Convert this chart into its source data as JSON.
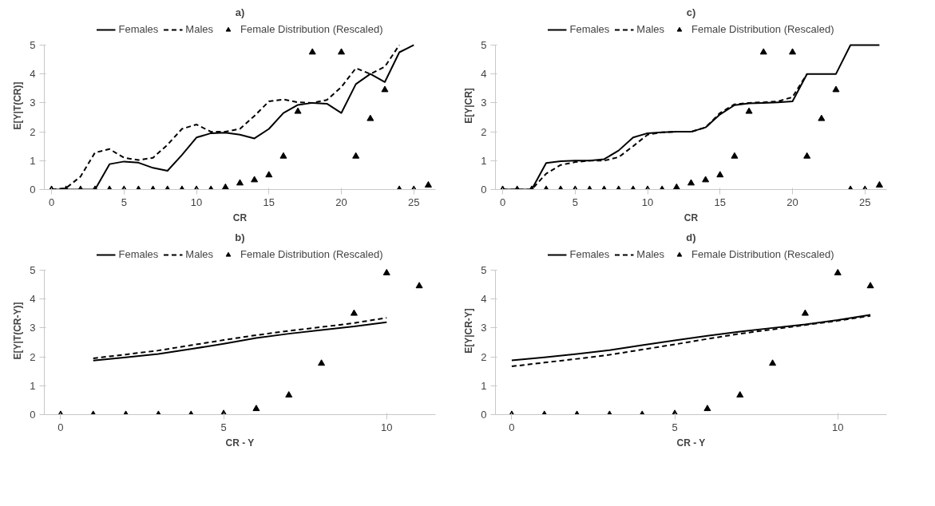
{
  "chart_data": [
    {
      "type": "line",
      "title": "a)",
      "xlabel": "CR",
      "ylabel": "E[Y|T(CR)]",
      "xlim": [
        -0.5,
        26.5
      ],
      "xticks": [
        0,
        5,
        10,
        15,
        20,
        25
      ],
      "ylim": [
        0,
        5
      ],
      "yticks": [
        0,
        1,
        2,
        3,
        4,
        5
      ],
      "legend": "top",
      "series": [
        {
          "name": "Females",
          "color": "#000000",
          "line_style": "solid",
          "x": [
            0,
            1,
            2,
            3,
            4,
            5,
            6,
            7,
            8,
            9,
            10,
            11,
            12,
            13,
            14,
            15,
            16,
            17,
            18,
            19,
            20,
            21,
            22,
            23,
            24,
            25
          ],
          "values": [
            0,
            0,
            0,
            0,
            0.88,
            0.97,
            0.93,
            0.75,
            0.65,
            1.2,
            1.8,
            1.95,
            1.97,
            1.9,
            1.77,
            2.1,
            2.65,
            2.93,
            3.0,
            2.97,
            2.65,
            3.65,
            4.0,
            3.72,
            4.75,
            5.0
          ]
        },
        {
          "name": "Males",
          "color": "#000000",
          "line_style": "dashed",
          "x": [
            0,
            1,
            2,
            3,
            4,
            5,
            6,
            7,
            8,
            9,
            10,
            11,
            12,
            13,
            14,
            15,
            16,
            17,
            18,
            19,
            20,
            21,
            22,
            23,
            24
          ],
          "values": [
            0,
            0.05,
            0.45,
            1.28,
            1.4,
            1.1,
            1.02,
            1.1,
            1.55,
            2.1,
            2.25,
            2.0,
            2.0,
            2.1,
            2.55,
            3.05,
            3.12,
            3.02,
            3.0,
            3.1,
            3.55,
            4.2,
            4.0,
            4.25,
            5.0
          ]
        },
        {
          "name": "Female Distribution (Rescaled)",
          "type": "scatter",
          "marker": "triangle",
          "color": "#000000",
          "x": [
            0,
            1,
            2,
            3,
            4,
            5,
            6,
            7,
            8,
            9,
            10,
            11,
            12,
            13,
            14,
            15,
            16,
            17,
            18,
            19,
            20,
            21,
            22,
            23,
            24,
            25,
            26
          ],
          "values": [
            0,
            0,
            0,
            0,
            0,
            0,
            0,
            0,
            0,
            0,
            0,
            0,
            0.07,
            0.22,
            0.33,
            0.5,
            1.15,
            2.7,
            4.75,
            null,
            4.75,
            1.15,
            2.45,
            3.45,
            0,
            0,
            0.15
          ]
        }
      ]
    },
    {
      "type": "line",
      "title": "c)",
      "xlabel": "CR",
      "ylabel": "E[Y|CR]",
      "xlim": [
        -0.5,
        26.5
      ],
      "xticks": [
        0,
        5,
        10,
        15,
        20,
        25
      ],
      "ylim": [
        0,
        5
      ],
      "yticks": [
        0,
        1,
        2,
        3,
        4,
        5
      ],
      "legend": "top",
      "series": [
        {
          "name": "Females",
          "color": "#000000",
          "line_style": "solid",
          "x": [
            0,
            1,
            2,
            3,
            4,
            5,
            6,
            7,
            8,
            9,
            10,
            11,
            12,
            13,
            14,
            15,
            16,
            17,
            18,
            19,
            20,
            21,
            22,
            23,
            24,
            25,
            26
          ],
          "values": [
            0,
            0,
            0,
            0.92,
            0.98,
            1.0,
            1.0,
            1.05,
            1.35,
            1.8,
            1.95,
            1.98,
            2.0,
            2.0,
            2.15,
            2.6,
            2.92,
            2.98,
            3.0,
            3.02,
            3.05,
            4.0,
            4.0,
            4.0,
            5.0,
            5.0,
            5.0
          ]
        },
        {
          "name": "Males",
          "color": "#000000",
          "line_style": "dashed",
          "x": [
            0,
            1,
            2,
            3,
            4,
            5,
            6,
            7,
            8,
            9,
            10,
            11,
            12,
            13,
            14,
            15,
            16,
            17,
            18,
            19,
            20,
            21
          ],
          "values": [
            0,
            0,
            0,
            0.55,
            0.85,
            0.95,
            1.0,
            1.0,
            1.12,
            1.5,
            1.9,
            1.98,
            2.0,
            2.0,
            2.15,
            2.65,
            2.95,
            3.0,
            3.02,
            3.05,
            3.2,
            4.0
          ]
        },
        {
          "name": "Female Distribution (Rescaled)",
          "type": "scatter",
          "marker": "triangle",
          "color": "#000000",
          "x": [
            0,
            1,
            2,
            3,
            4,
            5,
            6,
            7,
            8,
            9,
            10,
            11,
            12,
            13,
            14,
            15,
            16,
            17,
            18,
            19,
            20,
            21,
            22,
            23,
            24,
            25,
            26
          ],
          "values": [
            0,
            0,
            0,
            0,
            0,
            0,
            0,
            0,
            0,
            0,
            0,
            0,
            0.07,
            0.22,
            0.33,
            0.5,
            1.15,
            2.7,
            4.75,
            null,
            4.75,
            1.15,
            2.45,
            3.45,
            0,
            0,
            0.15
          ]
        }
      ]
    },
    {
      "type": "line",
      "title": "b)",
      "xlabel": "CR - Y",
      "ylabel": "E[Y|T(CR-Y)]",
      "xlim": [
        -0.5,
        11.5
      ],
      "xticks": [
        0,
        5,
        10
      ],
      "ylim": [
        0,
        5
      ],
      "yticks": [
        0,
        1,
        2,
        3,
        4,
        5
      ],
      "legend": "top",
      "series": [
        {
          "name": "Females",
          "color": "#000000",
          "line_style": "solid",
          "x": [
            1,
            2,
            3,
            4,
            5,
            6,
            7,
            8,
            9,
            10
          ],
          "values": [
            1.87,
            1.98,
            2.1,
            2.27,
            2.45,
            2.65,
            2.8,
            2.93,
            3.05,
            3.2
          ]
        },
        {
          "name": "Males",
          "color": "#000000",
          "line_style": "dashed",
          "x": [
            1,
            2,
            3,
            4,
            5,
            6,
            7,
            8,
            9,
            10
          ],
          "values": [
            1.95,
            2.08,
            2.22,
            2.4,
            2.58,
            2.75,
            2.9,
            3.03,
            3.17,
            3.35
          ]
        },
        {
          "name": "Female Distribution (Rescaled)",
          "type": "scatter",
          "marker": "triangle",
          "color": "#000000",
          "x": [
            0,
            1,
            2,
            3,
            4,
            5,
            6,
            7,
            8,
            9,
            10,
            11
          ],
          "values": [
            0,
            0,
            0,
            0,
            0,
            0.03,
            0.2,
            0.67,
            1.77,
            3.5,
            4.9,
            4.45
          ]
        }
      ]
    },
    {
      "type": "line",
      "title": "d)",
      "xlabel": "CR - Y",
      "ylabel": "E[Y|CR-Y]",
      "xlim": [
        -0.5,
        11.5
      ],
      "xticks": [
        0,
        5,
        10
      ],
      "ylim": [
        0,
        5
      ],
      "yticks": [
        0,
        1,
        2,
        3,
        4,
        5
      ],
      "legend": "top",
      "series": [
        {
          "name": "Females",
          "color": "#000000",
          "line_style": "solid",
          "x": [
            0,
            1,
            2,
            3,
            4,
            5,
            6,
            7,
            8,
            9,
            10,
            11
          ],
          "values": [
            1.88,
            1.98,
            2.1,
            2.23,
            2.4,
            2.57,
            2.73,
            2.87,
            3.0,
            3.12,
            3.27,
            3.45
          ]
        },
        {
          "name": "Males",
          "color": "#000000",
          "line_style": "dashed",
          "x": [
            0,
            1,
            2,
            3,
            4,
            5,
            6,
            7,
            8,
            9,
            10,
            11
          ],
          "values": [
            1.67,
            1.8,
            1.93,
            2.07,
            2.25,
            2.43,
            2.62,
            2.8,
            2.95,
            3.1,
            3.25,
            3.42
          ]
        },
        {
          "name": "Female Distribution (Rescaled)",
          "type": "scatter",
          "marker": "triangle",
          "color": "#000000",
          "x": [
            0,
            1,
            2,
            3,
            4,
            5,
            6,
            7,
            8,
            9,
            10,
            11
          ],
          "values": [
            0,
            0,
            0,
            0,
            0,
            0.03,
            0.2,
            0.67,
            1.77,
            3.5,
            4.9,
            4.45
          ]
        }
      ]
    }
  ]
}
